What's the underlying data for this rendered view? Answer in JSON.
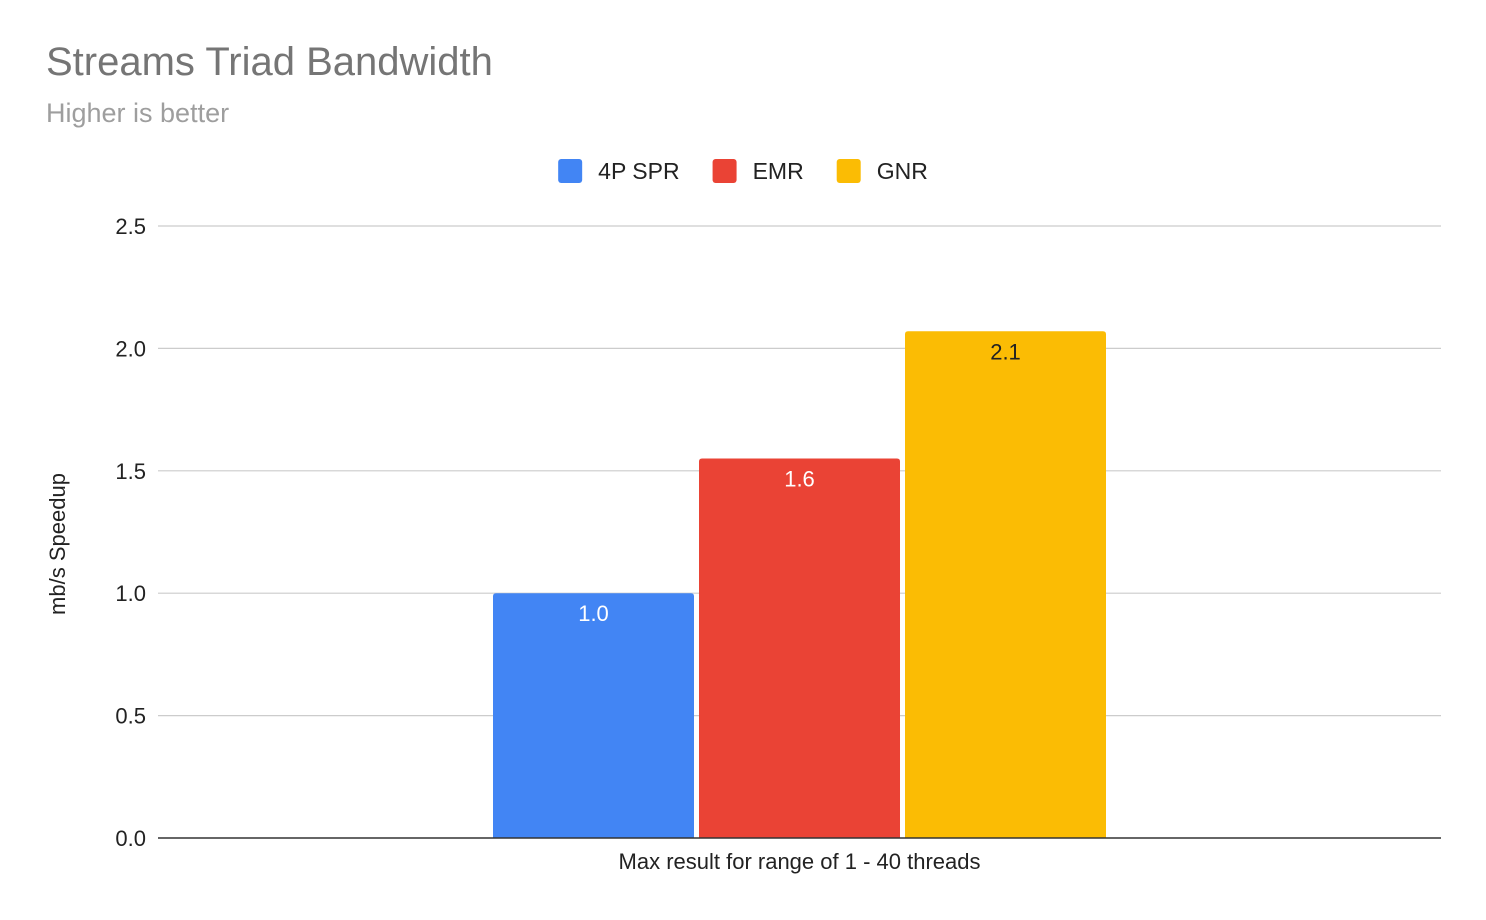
{
  "chart_data": {
    "type": "bar",
    "title": "Streams Triad Bandwidth",
    "subtitle": "Higher is better",
    "xlabel": "Max result for range of 1 - 40 threads",
    "ylabel": "mb/s Speedup",
    "ylim": [
      0,
      2.5
    ],
    "yticks": [
      "0.0",
      "0.5",
      "1.0",
      "1.5",
      "2.0",
      "2.5"
    ],
    "ytick_values": [
      0,
      0.5,
      1.0,
      1.5,
      2.0,
      2.5
    ],
    "grid": true,
    "legend_position": "top",
    "categories": [
      "Max result for range of 1 - 40 threads"
    ],
    "series": [
      {
        "name": "4P SPR",
        "values": [
          1.0
        ],
        "data_label": "1.0",
        "color": "#4285f4",
        "label_color": "#ffffff"
      },
      {
        "name": "EMR",
        "values": [
          1.55
        ],
        "data_label": "1.6",
        "color": "#ea4335",
        "label_color": "#ffffff"
      },
      {
        "name": "GNR",
        "values": [
          2.07
        ],
        "data_label": "2.1",
        "color": "#fbbc04",
        "label_color": "#222222"
      }
    ]
  }
}
